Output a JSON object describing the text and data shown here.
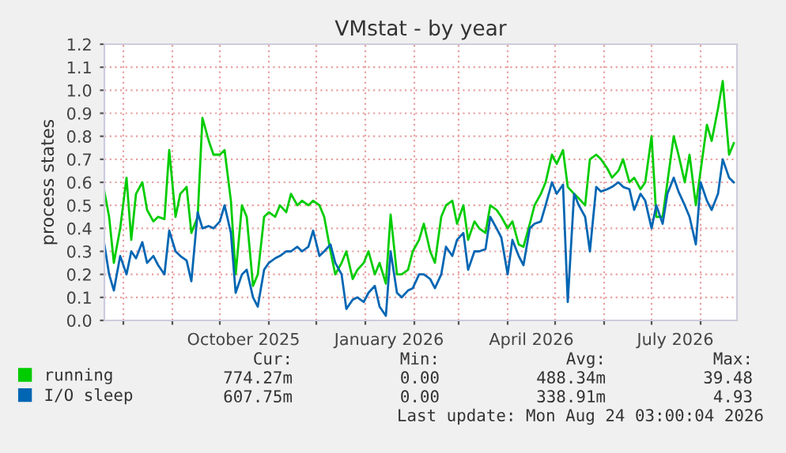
{
  "chart_data": {
    "type": "line",
    "title": "VMstat - by year",
    "ylabel": "process states",
    "x": [
      "2025-07-20",
      "2025-07-23",
      "2025-07-26",
      "2025-07-30",
      "2025-08-03",
      "2025-08-06",
      "2025-08-09",
      "2025-08-13",
      "2025-08-16",
      "2025-08-20",
      "2025-08-23",
      "2025-08-27",
      "2025-08-30",
      "2025-09-03",
      "2025-09-06",
      "2025-09-10",
      "2025-09-13",
      "2025-09-17",
      "2025-09-20",
      "2025-09-24",
      "2025-09-27",
      "2025-10-01",
      "2025-10-04",
      "2025-10-08",
      "2025-10-11",
      "2025-10-15",
      "2025-10-18",
      "2025-10-22",
      "2025-10-25",
      "2025-10-29",
      "2025-11-01",
      "2025-11-05",
      "2025-11-08",
      "2025-11-12",
      "2025-11-15",
      "2025-11-19",
      "2025-11-22",
      "2025-11-26",
      "2025-11-29",
      "2025-12-03",
      "2025-12-06",
      "2025-12-10",
      "2025-12-13",
      "2025-12-17",
      "2025-12-20",
      "2025-12-24",
      "2025-12-27",
      "2025-12-31",
      "2026-01-03",
      "2026-01-07",
      "2026-01-10",
      "2026-01-14",
      "2026-01-17",
      "2026-01-21",
      "2026-01-24",
      "2026-01-28",
      "2026-01-31",
      "2026-02-04",
      "2026-02-07",
      "2026-02-11",
      "2026-02-14",
      "2026-02-18",
      "2026-02-21",
      "2026-02-25",
      "2026-02-28",
      "2026-03-04",
      "2026-03-07",
      "2026-03-11",
      "2026-03-14",
      "2026-03-18",
      "2026-03-21",
      "2026-03-25",
      "2026-03-28",
      "2026-04-01",
      "2026-04-04",
      "2026-04-08",
      "2026-04-11",
      "2026-04-15",
      "2026-04-18",
      "2026-04-22",
      "2026-04-25",
      "2026-04-29",
      "2026-05-02",
      "2026-05-06",
      "2026-05-09",
      "2026-05-13",
      "2026-05-16",
      "2026-05-20",
      "2026-05-23",
      "2026-05-27",
      "2026-05-30",
      "2026-06-03",
      "2026-06-06",
      "2026-06-10",
      "2026-06-13",
      "2026-06-17",
      "2026-06-20",
      "2026-06-24",
      "2026-06-27",
      "2026-07-01",
      "2026-07-04",
      "2026-07-08",
      "2026-07-11",
      "2026-07-15",
      "2026-07-18",
      "2026-07-22",
      "2026-07-25",
      "2026-07-29",
      "2026-08-01",
      "2026-08-05",
      "2026-08-08",
      "2026-08-12",
      "2026-08-15",
      "2026-08-19",
      "2026-08-22"
    ],
    "series": [
      {
        "name": "running",
        "color": "#00cc00",
        "values": [
          0.56,
          0.45,
          0.25,
          0.4,
          0.62,
          0.35,
          0.55,
          0.6,
          0.48,
          0.43,
          0.45,
          0.44,
          0.74,
          0.45,
          0.55,
          0.58,
          0.38,
          0.45,
          0.88,
          0.78,
          0.72,
          0.72,
          0.74,
          0.52,
          0.2,
          0.5,
          0.45,
          0.15,
          0.2,
          0.45,
          0.47,
          0.45,
          0.5,
          0.47,
          0.55,
          0.5,
          0.52,
          0.5,
          0.52,
          0.5,
          0.45,
          0.3,
          0.2,
          0.25,
          0.3,
          0.18,
          0.22,
          0.25,
          0.3,
          0.2,
          0.25,
          0.16,
          0.46,
          0.2,
          0.2,
          0.22,
          0.3,
          0.35,
          0.42,
          0.3,
          0.25,
          0.45,
          0.5,
          0.52,
          0.42,
          0.5,
          0.35,
          0.43,
          0.4,
          0.38,
          0.5,
          0.48,
          0.45,
          0.4,
          0.43,
          0.33,
          0.32,
          0.42,
          0.5,
          0.55,
          0.6,
          0.72,
          0.68,
          0.74,
          0.58,
          0.55,
          0.53,
          0.5,
          0.7,
          0.72,
          0.7,
          0.66,
          0.62,
          0.65,
          0.7,
          0.6,
          0.62,
          0.57,
          0.6,
          0.8,
          0.45,
          0.45,
          0.6,
          0.8,
          0.72,
          0.6,
          0.72,
          0.5,
          0.65,
          0.85,
          0.78,
          0.92,
          1.04,
          0.72,
          0.77
        ]
      },
      {
        "name": "I/O sleep",
        "color": "#0066b3",
        "values": [
          0.33,
          0.2,
          0.13,
          0.28,
          0.2,
          0.3,
          0.27,
          0.34,
          0.25,
          0.28,
          0.24,
          0.2,
          0.39,
          0.3,
          0.28,
          0.26,
          0.17,
          0.47,
          0.4,
          0.41,
          0.4,
          0.43,
          0.5,
          0.38,
          0.12,
          0.2,
          0.22,
          0.1,
          0.06,
          0.22,
          0.25,
          0.27,
          0.28,
          0.3,
          0.3,
          0.32,
          0.3,
          0.32,
          0.39,
          0.28,
          0.3,
          0.33,
          0.25,
          0.2,
          0.05,
          0.09,
          0.1,
          0.08,
          0.12,
          0.15,
          0.06,
          0.02,
          0.3,
          0.12,
          0.1,
          0.13,
          0.14,
          0.2,
          0.2,
          0.18,
          0.14,
          0.2,
          0.32,
          0.28,
          0.35,
          0.38,
          0.22,
          0.3,
          0.3,
          0.31,
          0.45,
          0.4,
          0.36,
          0.2,
          0.35,
          0.28,
          0.24,
          0.4,
          0.42,
          0.43,
          0.5,
          0.6,
          0.55,
          0.59,
          0.08,
          0.55,
          0.5,
          0.45,
          0.3,
          0.58,
          0.56,
          0.57,
          0.58,
          0.6,
          0.58,
          0.57,
          0.48,
          0.55,
          0.52,
          0.4,
          0.5,
          0.42,
          0.55,
          0.62,
          0.56,
          0.5,
          0.45,
          0.33,
          0.6,
          0.52,
          0.48,
          0.55,
          0.7,
          0.62,
          0.6
        ]
      }
    ],
    "xlim": [
      "2025-07-20",
      "2026-08-24"
    ],
    "xticks": [
      {
        "value": "2025-08-01",
        "label": null
      },
      {
        "value": "2025-09-01",
        "label": null
      },
      {
        "value": "2025-10-01",
        "label": null
      },
      {
        "value": "2025-10-16",
        "label": "October 2025"
      },
      {
        "value": "2025-11-01",
        "label": null
      },
      {
        "value": "2025-12-01",
        "label": null
      },
      {
        "value": "2026-01-01",
        "label": null
      },
      {
        "value": "2026-01-16",
        "label": "January 2026"
      },
      {
        "value": "2026-02-01",
        "label": null
      },
      {
        "value": "2026-03-01",
        "label": null
      },
      {
        "value": "2026-04-01",
        "label": null
      },
      {
        "value": "2026-04-16",
        "label": "April 2026"
      },
      {
        "value": "2026-05-01",
        "label": null
      },
      {
        "value": "2026-06-01",
        "label": null
      },
      {
        "value": "2026-07-01",
        "label": null
      },
      {
        "value": "2026-07-16",
        "label": "July 2026"
      },
      {
        "value": "2026-08-01",
        "label": null
      }
    ],
    "ylim": [
      0,
      1.2
    ],
    "yticks": [
      {
        "value": 0,
        "label": "0.0"
      },
      0.1,
      0.2,
      0.3,
      0.4,
      0.5,
      0.6,
      0.7,
      0.8,
      0.9,
      {
        "value": 1,
        "label": "1.0"
      },
      1.1,
      1.2
    ],
    "grid": true,
    "legend": "bottom",
    "line_style": "solid",
    "marker": "none",
    "annotations": [
      "Cur:",
      "Min:",
      "Avg:",
      "Max:",
      "774.27m",
      "0.00",
      "488.34m",
      "39.48",
      "607.75m",
      "0.00",
      "338.91m",
      "4.93",
      "Last update: Mon Aug 24 03:00:04 2026"
    ]
  }
}
